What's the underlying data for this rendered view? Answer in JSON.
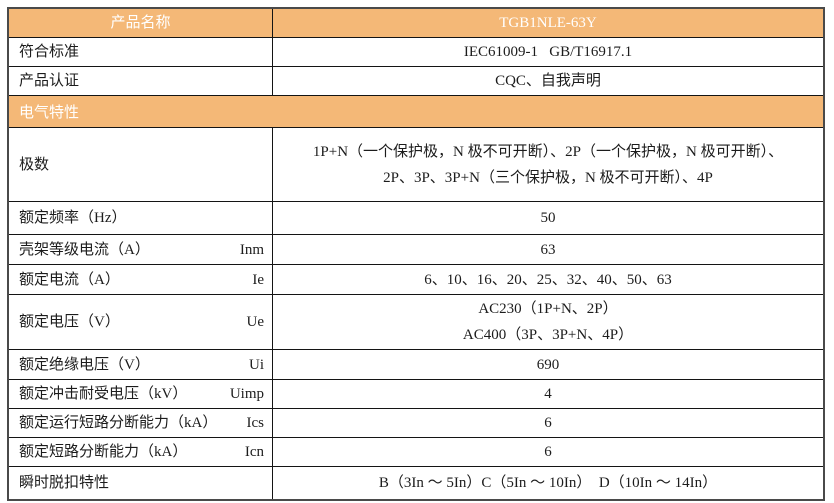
{
  "colors": {
    "header_bg": "#f4b877",
    "header_text": "#ffffff",
    "body_text": "#1c1c1c",
    "border": "#141414",
    "outer_border": "#4a4a4a",
    "page_bg": "#ffffff"
  },
  "table": {
    "header": {
      "label": "产品名称",
      "value": "TGB1NLE-63Y"
    },
    "info_rows": [
      {
        "label": "符合标准",
        "value": "IEC61009-1   GB/T16917.1"
      },
      {
        "label": "产品认证",
        "value": "CQC、自我声明"
      }
    ],
    "section": {
      "title": "电气特性"
    },
    "spec_rows": [
      {
        "label": "极数",
        "symbol": "",
        "value_lines": [
          "1P+N（一个保护极，N 极不可开断）、2P（一个保护极，N 极可开断）、",
          "2P、3P、3P+N（三个保护极，N 极不可开断）、4P"
        ]
      },
      {
        "label": "额定频率（Hz）",
        "symbol": "",
        "value_lines": [
          "50"
        ]
      },
      {
        "label": "壳架等级电流（A）",
        "symbol": "Inm",
        "value_lines": [
          "63"
        ]
      },
      {
        "label": "额定电流（A）",
        "symbol": "Ie",
        "value_lines": [
          "6、10、16、20、25、32、40、50、63"
        ]
      },
      {
        "label": "额定电压（V）",
        "symbol": "Ue",
        "value_lines": [
          "AC230（1P+N、2P）",
          "AC400（3P、3P+N、4P）"
        ]
      },
      {
        "label": "额定绝缘电压（V）",
        "symbol": "Ui",
        "value_lines": [
          "690"
        ]
      },
      {
        "label": "额定冲击耐受电压（kV）",
        "symbol": "Uimp",
        "value_lines": [
          "4"
        ]
      },
      {
        "label": "额定运行短路分断能力（kA）",
        "symbol": "Ics",
        "value_lines": [
          "6"
        ]
      },
      {
        "label": "额定短路分断能力（kA）",
        "symbol": "Icn",
        "value_lines": [
          "6"
        ]
      },
      {
        "label": "瞬时脱扣特性",
        "symbol": "",
        "value_lines": [
          "B（3In ～ 5In）C（5In ～ 10In）  D（10In ～ 14In）"
        ]
      }
    ]
  }
}
